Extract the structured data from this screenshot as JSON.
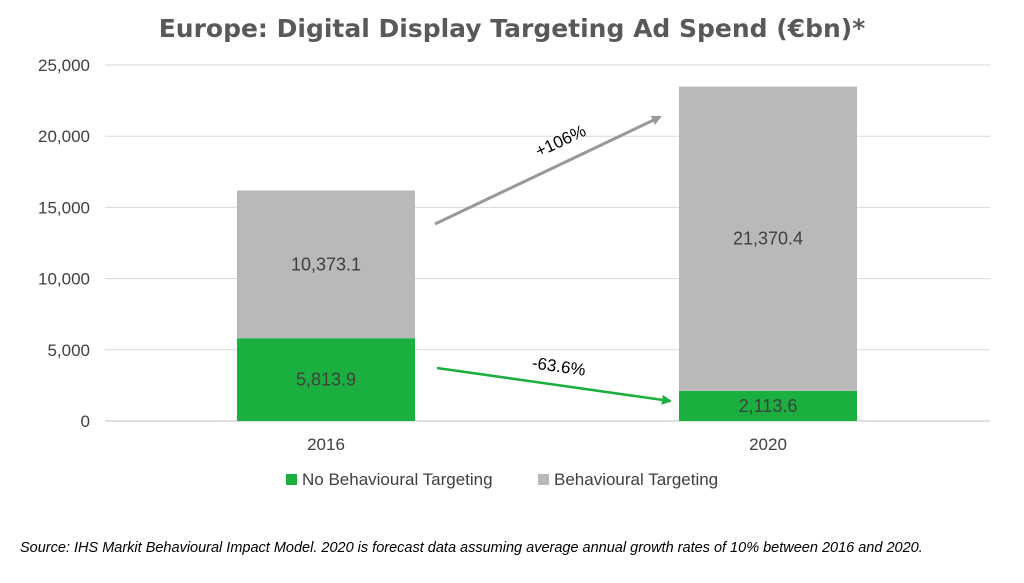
{
  "chart_data": {
    "type": "bar",
    "stacked": true,
    "title": "Europe: Digital Display Targeting Ad Spend (€bn)*",
    "categories": [
      "2016",
      "2020"
    ],
    "series": [
      {
        "name": "No Behavioural Targeting",
        "values": [
          5813.9,
          2113.6
        ],
        "labels": [
          "5,813.9",
          "2,113.6"
        ],
        "color": "#1aaf3f"
      },
      {
        "name": "Behavioural Targeting",
        "values": [
          10373.1,
          21370.4
        ],
        "labels": [
          "10,373.1",
          "21,370.4"
        ],
        "color": "#b9b9b9"
      }
    ],
    "ylim": [
      0,
      25000
    ],
    "yticks": [
      0,
      5000,
      10000,
      15000,
      20000,
      25000
    ],
    "ytick_labels": [
      "0",
      "5,000",
      "10,000",
      "15,000",
      "20,000",
      "25,000"
    ],
    "grid": true,
    "legend": "bottom",
    "annotations": [
      {
        "text": "+106%",
        "series": "Behavioural Targeting",
        "color": "#999999"
      },
      {
        "text": "-63.6%",
        "series": "No Behavioural Targeting",
        "color": "#1aaf3f"
      }
    ],
    "source": "Source: IHS Markit Behavioural Impact Model. 2020 is forecast data assuming average annual growth rates of 10% between 2016 and 2020."
  }
}
